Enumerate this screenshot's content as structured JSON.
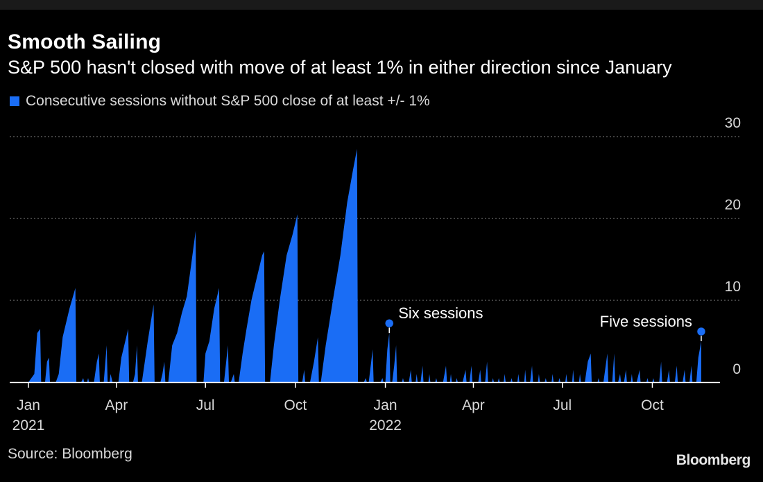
{
  "header": {
    "title": "Smooth Sailing",
    "subtitle": "S&P 500 hasn't closed with move of at least 1% in either direction since January"
  },
  "footer": {
    "source": "Source: Bloomberg",
    "brand": "Bloomberg"
  },
  "chart_data": {
    "type": "area",
    "series": [
      {
        "name": "Consecutive sessions without S&P 500 close of at least +/- 1%",
        "color": "#1a6df5",
        "points": [
          [
            "2021-01-01",
            0
          ],
          [
            "2021-01-07",
            1
          ],
          [
            "2021-01-10",
            6
          ],
          [
            "2021-01-13",
            6.5
          ],
          [
            "2021-01-14",
            0
          ],
          [
            "2021-01-18",
            0
          ],
          [
            "2021-01-20",
            2.5
          ],
          [
            "2021-01-22",
            3
          ],
          [
            "2021-01-23",
            0
          ],
          [
            "2021-01-29",
            0
          ],
          [
            "2021-02-01",
            1
          ],
          [
            "2021-02-05",
            5.5
          ],
          [
            "2021-02-12",
            9
          ],
          [
            "2021-02-18",
            11.5
          ],
          [
            "2021-02-19",
            0
          ],
          [
            "2021-02-24",
            0
          ],
          [
            "2021-02-26",
            0.5
          ],
          [
            "2021-02-27",
            0
          ],
          [
            "2021-03-02",
            0
          ],
          [
            "2021-03-03",
            0.5
          ],
          [
            "2021-03-04",
            0
          ],
          [
            "2021-03-09",
            0
          ],
          [
            "2021-03-12",
            2.5
          ],
          [
            "2021-03-14",
            3.5
          ],
          [
            "2021-03-15",
            0
          ],
          [
            "2021-03-19",
            0
          ],
          [
            "2021-03-22",
            4.5
          ],
          [
            "2021-03-23",
            0
          ],
          [
            "2021-03-25",
            0
          ],
          [
            "2021-03-26",
            1
          ],
          [
            "2021-03-28",
            0
          ],
          [
            "2021-04-03",
            0
          ],
          [
            "2021-04-06",
            3
          ],
          [
            "2021-04-10",
            5
          ],
          [
            "2021-04-13",
            6.5
          ],
          [
            "2021-04-14",
            0
          ],
          [
            "2021-04-18",
            0
          ],
          [
            "2021-04-20",
            1
          ],
          [
            "2021-04-22",
            4.5
          ],
          [
            "2021-04-23",
            0
          ],
          [
            "2021-04-27",
            0
          ],
          [
            "2021-05-03",
            5
          ],
          [
            "2021-05-09",
            9.5
          ],
          [
            "2021-05-10",
            0
          ],
          [
            "2021-05-16",
            0
          ],
          [
            "2021-05-18",
            1
          ],
          [
            "2021-05-20",
            2.5
          ],
          [
            "2021-05-21",
            0
          ],
          [
            "2021-05-24",
            0
          ],
          [
            "2021-05-28",
            4.5
          ],
          [
            "2021-06-02",
            6
          ],
          [
            "2021-06-07",
            8.5
          ],
          [
            "2021-06-12",
            10.5
          ],
          [
            "2021-06-16",
            14
          ],
          [
            "2021-06-21",
            18.5
          ],
          [
            "2021-06-22",
            0
          ],
          [
            "2021-06-29",
            0
          ],
          [
            "2021-07-01",
            3.5
          ],
          [
            "2021-07-05",
            5
          ],
          [
            "2021-07-10",
            9
          ],
          [
            "2021-07-15",
            11.5
          ],
          [
            "2021-07-16",
            0
          ],
          [
            "2021-07-20",
            0
          ],
          [
            "2021-07-24",
            4.5
          ],
          [
            "2021-07-25",
            0
          ],
          [
            "2021-07-27",
            0
          ],
          [
            "2021-07-30",
            1
          ],
          [
            "2021-07-31",
            0
          ],
          [
            "2021-08-04",
            0
          ],
          [
            "2021-08-08",
            3.5
          ],
          [
            "2021-08-12",
            6.5
          ],
          [
            "2021-08-17",
            10
          ],
          [
            "2021-08-22",
            12.5
          ],
          [
            "2021-08-28",
            15.5
          ],
          [
            "2021-08-30",
            16
          ],
          [
            "2021-08-31",
            0
          ],
          [
            "2021-09-05",
            0
          ],
          [
            "2021-09-09",
            4.5
          ],
          [
            "2021-09-15",
            10
          ],
          [
            "2021-09-22",
            15.5
          ],
          [
            "2021-09-28",
            18
          ],
          [
            "2021-10-03",
            20.5
          ],
          [
            "2021-10-04",
            0
          ],
          [
            "2021-10-08",
            0
          ],
          [
            "2021-10-10",
            1.5
          ],
          [
            "2021-10-11",
            0
          ],
          [
            "2021-10-16",
            0
          ],
          [
            "2021-10-20",
            2.5
          ],
          [
            "2021-10-24",
            5.5
          ],
          [
            "2021-10-25",
            0
          ],
          [
            "2021-10-27",
            0
          ],
          [
            "2021-11-01",
            4.5
          ],
          [
            "2021-11-09",
            10.5
          ],
          [
            "2021-11-16",
            15.5
          ],
          [
            "2021-11-23",
            22
          ],
          [
            "2021-11-29",
            26
          ],
          [
            "2021-12-03",
            28.5
          ],
          [
            "2021-12-04",
            0
          ],
          [
            "2021-12-10",
            0
          ],
          [
            "2021-12-12",
            0.5
          ],
          [
            "2021-12-13",
            0
          ],
          [
            "2021-12-15",
            0
          ],
          [
            "2021-12-19",
            4
          ],
          [
            "2021-12-20",
            0
          ],
          [
            "2021-12-27",
            0
          ],
          [
            "2021-12-29",
            0.5
          ],
          [
            "2021-12-30",
            0
          ],
          [
            "2022-01-01",
            0
          ],
          [
            "2022-01-03",
            4
          ],
          [
            "2022-01-05",
            6
          ],
          [
            "2022-01-06",
            0
          ],
          [
            "2022-01-08",
            0
          ],
          [
            "2022-01-10",
            2
          ],
          [
            "2022-01-12",
            4.5
          ],
          [
            "2022-01-13",
            0
          ],
          [
            "2022-01-18",
            0
          ],
          [
            "2022-01-19",
            0.5
          ],
          [
            "2022-01-20",
            0
          ],
          [
            "2022-01-25",
            0
          ],
          [
            "2022-01-27",
            1.5
          ],
          [
            "2022-01-28",
            0
          ],
          [
            "2022-02-01",
            0
          ],
          [
            "2022-02-02",
            1
          ],
          [
            "2022-02-03",
            0
          ],
          [
            "2022-02-06",
            0
          ],
          [
            "2022-02-08",
            2
          ],
          [
            "2022-02-09",
            0
          ],
          [
            "2022-02-14",
            0
          ],
          [
            "2022-02-15",
            1
          ],
          [
            "2022-02-16",
            0
          ],
          [
            "2022-02-21",
            0
          ],
          [
            "2022-02-22",
            0.5
          ],
          [
            "2022-02-23",
            0
          ],
          [
            "2022-03-01",
            0
          ],
          [
            "2022-03-04",
            2
          ],
          [
            "2022-03-05",
            0
          ],
          [
            "2022-03-08",
            0
          ],
          [
            "2022-03-09",
            1
          ],
          [
            "2022-03-10",
            0
          ],
          [
            "2022-03-14",
            0
          ],
          [
            "2022-03-15",
            0.5
          ],
          [
            "2022-03-16",
            0
          ],
          [
            "2022-03-21",
            0
          ],
          [
            "2022-03-24",
            1.5
          ],
          [
            "2022-03-25",
            0
          ],
          [
            "2022-03-28",
            0
          ],
          [
            "2022-03-30",
            2
          ],
          [
            "2022-03-31",
            0
          ],
          [
            "2022-04-06",
            0
          ],
          [
            "2022-04-08",
            1.5
          ],
          [
            "2022-04-09",
            0
          ],
          [
            "2022-04-13",
            0
          ],
          [
            "2022-04-15",
            2.5
          ],
          [
            "2022-04-16",
            0
          ],
          [
            "2022-04-20",
            0
          ],
          [
            "2022-04-21",
            0.5
          ],
          [
            "2022-04-22",
            0
          ],
          [
            "2022-04-26",
            0
          ],
          [
            "2022-04-27",
            0.5
          ],
          [
            "2022-04-28",
            0
          ],
          [
            "2022-05-02",
            0
          ],
          [
            "2022-05-03",
            1
          ],
          [
            "2022-05-04",
            0
          ],
          [
            "2022-05-09",
            0
          ],
          [
            "2022-05-10",
            0.5
          ],
          [
            "2022-05-11",
            0
          ],
          [
            "2022-05-16",
            0
          ],
          [
            "2022-05-17",
            1
          ],
          [
            "2022-05-18",
            0
          ],
          [
            "2022-05-23",
            0
          ],
          [
            "2022-05-24",
            1.5
          ],
          [
            "2022-05-25",
            0
          ],
          [
            "2022-05-29",
            0
          ],
          [
            "2022-05-31",
            2
          ],
          [
            "2022-06-01",
            0
          ],
          [
            "2022-06-06",
            0
          ],
          [
            "2022-06-07",
            1
          ],
          [
            "2022-06-08",
            0
          ],
          [
            "2022-06-13",
            0
          ],
          [
            "2022-06-14",
            0.5
          ],
          [
            "2022-06-15",
            0
          ],
          [
            "2022-06-20",
            0
          ],
          [
            "2022-06-21",
            1
          ],
          [
            "2022-06-22",
            0
          ],
          [
            "2022-06-27",
            0
          ],
          [
            "2022-06-28",
            0.5
          ],
          [
            "2022-06-29",
            0
          ],
          [
            "2022-07-04",
            0
          ],
          [
            "2022-07-05",
            1
          ],
          [
            "2022-07-06",
            0
          ],
          [
            "2022-07-11",
            0
          ],
          [
            "2022-07-12",
            1.5
          ],
          [
            "2022-07-13",
            0
          ],
          [
            "2022-07-18",
            0
          ],
          [
            "2022-07-19",
            1
          ],
          [
            "2022-07-20",
            0
          ],
          [
            "2022-07-24",
            0
          ],
          [
            "2022-07-27",
            2.5
          ],
          [
            "2022-07-30",
            3.5
          ],
          [
            "2022-07-31",
            0
          ],
          [
            "2022-08-06",
            0
          ],
          [
            "2022-08-07",
            0.5
          ],
          [
            "2022-08-08",
            0
          ],
          [
            "2022-08-12",
            0
          ],
          [
            "2022-08-16",
            3.5
          ],
          [
            "2022-08-17",
            0
          ],
          [
            "2022-08-21",
            0
          ],
          [
            "2022-08-23",
            3.5
          ],
          [
            "2022-08-24",
            0
          ],
          [
            "2022-08-27",
            0
          ],
          [
            "2022-08-29",
            1
          ],
          [
            "2022-08-30",
            0
          ],
          [
            "2022-09-02",
            0
          ],
          [
            "2022-09-04",
            1.5
          ],
          [
            "2022-09-05",
            0
          ],
          [
            "2022-09-09",
            0
          ],
          [
            "2022-09-10",
            1
          ],
          [
            "2022-09-11",
            0
          ],
          [
            "2022-09-15",
            0
          ],
          [
            "2022-09-18",
            1.5
          ],
          [
            "2022-09-19",
            0
          ],
          [
            "2022-09-25",
            0
          ],
          [
            "2022-09-26",
            0.5
          ],
          [
            "2022-09-27",
            0
          ],
          [
            "2022-10-01",
            0
          ],
          [
            "2022-10-02",
            0.5
          ],
          [
            "2022-10-03",
            0
          ],
          [
            "2022-10-08",
            0
          ],
          [
            "2022-10-10",
            2.5
          ],
          [
            "2022-10-11",
            0
          ],
          [
            "2022-10-16",
            0
          ],
          [
            "2022-10-18",
            1.5
          ],
          [
            "2022-10-19",
            0
          ],
          [
            "2022-10-24",
            0
          ],
          [
            "2022-10-26",
            2
          ],
          [
            "2022-10-27",
            0
          ],
          [
            "2022-11-01",
            0
          ],
          [
            "2022-11-03",
            1.5
          ],
          [
            "2022-11-04",
            0
          ],
          [
            "2022-11-08",
            0
          ],
          [
            "2022-11-10",
            2
          ],
          [
            "2022-11-11",
            0
          ],
          [
            "2022-11-15",
            0
          ],
          [
            "2022-11-17",
            3
          ],
          [
            "2022-11-20",
            5
          ]
        ]
      }
    ],
    "y_ticks": [
      0,
      10,
      20,
      30
    ],
    "ylim": [
      0,
      32
    ],
    "xlim": [
      "2021-01-01",
      "2022-11-25"
    ],
    "x_ticks": [
      {
        "date": "2021-01-01",
        "label": "Jan",
        "sublabel": "2021"
      },
      {
        "date": "2021-04-01",
        "label": "Apr",
        "sublabel": ""
      },
      {
        "date": "2021-07-01",
        "label": "Jul",
        "sublabel": ""
      },
      {
        "date": "2021-10-01",
        "label": "Oct",
        "sublabel": ""
      },
      {
        "date": "2022-01-01",
        "label": "Jan",
        "sublabel": "2022"
      },
      {
        "date": "2022-04-01",
        "label": "Apr",
        "sublabel": ""
      },
      {
        "date": "2022-07-01",
        "label": "Jul",
        "sublabel": ""
      },
      {
        "date": "2022-10-01",
        "label": "Oct",
        "sublabel": ""
      }
    ],
    "annotations": [
      {
        "date": "2022-01-05",
        "value": 6,
        "text": "Six sessions",
        "side": "right"
      },
      {
        "date": "2022-11-20",
        "value": 5,
        "text": "Five sessions",
        "side": "left"
      }
    ],
    "grid": true,
    "gridline_color": "#666666",
    "legend_position": "top-left"
  }
}
